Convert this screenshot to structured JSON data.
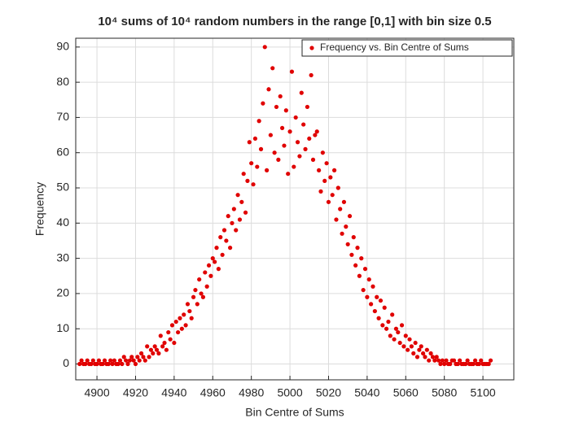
{
  "chart_data": {
    "type": "scatter",
    "title": "10⁴ sums of 10⁴ random numbers in the range [0,1] with bin size 0.5",
    "xlabel": "Bin Centre of Sums",
    "ylabel": "Frequency",
    "legend_position": "upper right",
    "grid": true,
    "xlim": [
      4889,
      5116
    ],
    "ylim": [
      -4.5,
      92.5
    ],
    "xticks": [
      4900,
      4920,
      4940,
      4960,
      4980,
      5000,
      5020,
      5040,
      5060,
      5080,
      5100
    ],
    "yticks": [
      0,
      10,
      20,
      30,
      40,
      50,
      60,
      70,
      80,
      90
    ],
    "series": [
      {
        "name": "Frequency vs. Bin Centre of Sums",
        "color": "#e00000",
        "x": [
          4891,
          4892,
          4893,
          4894,
          4895,
          4896,
          4897,
          4898,
          4899,
          4900,
          4901,
          4902,
          4903,
          4904,
          4905,
          4906,
          4907,
          4908,
          4909,
          4910,
          4911,
          4912,
          4913,
          4914,
          4915,
          4916,
          4917,
          4918,
          4919,
          4920,
          4921,
          4922,
          4923,
          4924,
          4925,
          4926,
          4927,
          4928,
          4929,
          4930,
          4931,
          4932,
          4933,
          4934,
          4935,
          4936,
          4937,
          4938,
          4939,
          4940,
          4941,
          4942,
          4943,
          4944,
          4945,
          4946,
          4947,
          4948,
          4949,
          4950,
          4951,
          4952,
          4953,
          4954,
          4955,
          4956,
          4957,
          4958,
          4959,
          4960,
          4961,
          4962,
          4963,
          4964,
          4965,
          4966,
          4967,
          4968,
          4969,
          4970,
          4971,
          4972,
          4973,
          4974,
          4975,
          4976,
          4977,
          4978,
          4979,
          4980,
          4981,
          4982,
          4983,
          4984,
          4985,
          4986,
          4987,
          4988,
          4989,
          4990,
          4991,
          4992,
          4993,
          4994,
          4995,
          4996,
          4997,
          4998,
          4999,
          5000,
          5001,
          5002,
          5003,
          5004,
          5005,
          5006,
          5007,
          5008,
          5009,
          5010,
          5011,
          5012,
          5013,
          5014,
          5015,
          5016,
          5017,
          5018,
          5019,
          5020,
          5021,
          5022,
          5023,
          5024,
          5025,
          5026,
          5027,
          5028,
          5029,
          5030,
          5031,
          5032,
          5033,
          5034,
          5035,
          5036,
          5037,
          5038,
          5039,
          5040,
          5041,
          5042,
          5043,
          5044,
          5045,
          5046,
          5047,
          5048,
          5049,
          5050,
          5051,
          5052,
          5053,
          5054,
          5055,
          5056,
          5057,
          5058,
          5059,
          5060,
          5061,
          5062,
          5063,
          5064,
          5065,
          5066,
          5067,
          5068,
          5069,
          5070,
          5071,
          5072,
          5073,
          5074,
          5075,
          5076,
          5077,
          5078,
          5079,
          5080,
          5081,
          5082,
          5083,
          5084,
          5085,
          5086,
          5087,
          5088,
          5089,
          5090,
          5091,
          5092,
          5093,
          5094,
          5095,
          5096,
          5097,
          5098,
          5099,
          5100,
          5101,
          5102,
          5103,
          5104
        ],
        "values": [
          0,
          1,
          0,
          0,
          1,
          0,
          0,
          1,
          0,
          0,
          1,
          0,
          0,
          1,
          0,
          0,
          1,
          0,
          1,
          0,
          0,
          1,
          0,
          2,
          1,
          0,
          1,
          2,
          1,
          0,
          2,
          1,
          3,
          2,
          1,
          5,
          2,
          4,
          3,
          5,
          4,
          3,
          8,
          5,
          6,
          4,
          9,
          7,
          11,
          6,
          12,
          9,
          13,
          10,
          14,
          11,
          17,
          15,
          13,
          19,
          21,
          17,
          24,
          20,
          19,
          26,
          22,
          28,
          25,
          30,
          29,
          33,
          27,
          36,
          31,
          38,
          35,
          42,
          33,
          40,
          44,
          38,
          48,
          41,
          46,
          54,
          43,
          52,
          63,
          57,
          51,
          64,
          56,
          69,
          61,
          74,
          90,
          55,
          78,
          65,
          84,
          60,
          73,
          58,
          76,
          67,
          62,
          72,
          54,
          66,
          83,
          56,
          70,
          63,
          59,
          77,
          68,
          61,
          73,
          64,
          82,
          58,
          65,
          66,
          55,
          49,
          60,
          52,
          57,
          46,
          53,
          48,
          55,
          41,
          50,
          44,
          37,
          46,
          39,
          34,
          42,
          31,
          36,
          28,
          33,
          25,
          30,
          21,
          27,
          19,
          24,
          17,
          22,
          15,
          19,
          13,
          18,
          11,
          16,
          10,
          12,
          8,
          14,
          7,
          10,
          9,
          6,
          11,
          5,
          8,
          4,
          7,
          5,
          3,
          6,
          2,
          4,
          5,
          3,
          2,
          4,
          1,
          3,
          2,
          1,
          2,
          1,
          0,
          1,
          0,
          1,
          0,
          0,
          1,
          1,
          0,
          0,
          1,
          0,
          0,
          0,
          1,
          0,
          0,
          0,
          1,
          0,
          0,
          1,
          0,
          0,
          0,
          0,
          1
        ]
      }
    ]
  }
}
